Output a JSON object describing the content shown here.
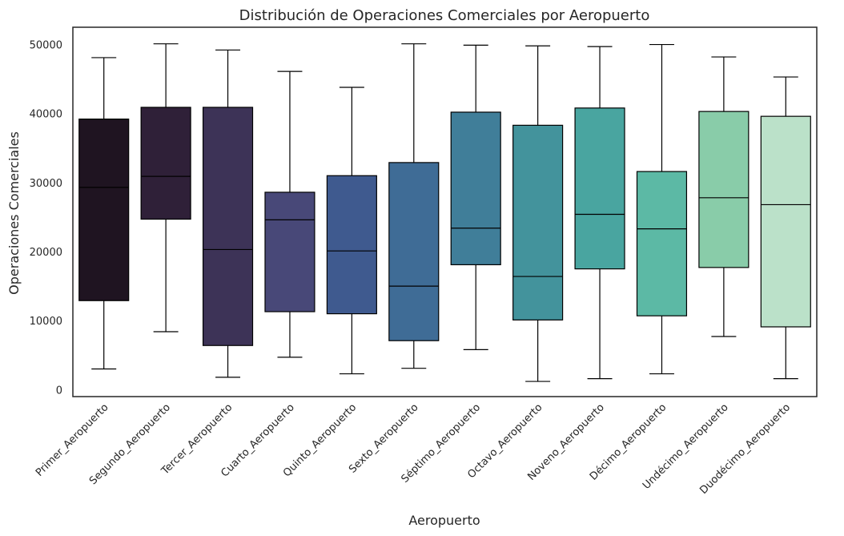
{
  "chart_data": {
    "type": "box",
    "title": "Distribución de Operaciones Comerciales por Aeropuerto",
    "xlabel": "Aeropuerto",
    "ylabel": "Operaciones Comerciales",
    "ylim": [
      -1000,
      52500
    ],
    "yticks": [
      0,
      10000,
      20000,
      30000,
      40000,
      50000
    ],
    "grid": false,
    "legend": "none",
    "categories": [
      "Primer_Aeropuerto",
      "Segundo_Aeropuerto",
      "Tercer_Aeropuerto",
      "Cuarto_Aeropuerto",
      "Quinto_Aeropuerto",
      "Sexto_Aeropuerto",
      "Séptimo_Aeropuerto",
      "Octavo_Aeropuerto",
      "Noveno_Aeropuerto",
      "Décimo_Aeropuerto",
      "Undécimo_Aeropuerto",
      "Duodécimo_Aeropuerto"
    ],
    "boxes": [
      {
        "min": 3000,
        "q1": 12900,
        "median": 29300,
        "q3": 39200,
        "max": 48100,
        "color": "#1f1421"
      },
      {
        "min": 8400,
        "q1": 24700,
        "median": 30900,
        "q3": 40900,
        "max": 50100,
        "color": "#2f2038"
      },
      {
        "min": 1800,
        "q1": 6400,
        "median": 20300,
        "q3": 40900,
        "max": 49200,
        "color": "#3d3357"
      },
      {
        "min": 4700,
        "q1": 11300,
        "median": 24600,
        "q3": 28600,
        "max": 46100,
        "color": "#484878"
      },
      {
        "min": 2300,
        "q1": 11000,
        "median": 20100,
        "q3": 31000,
        "max": 43800,
        "color": "#3f5a8f"
      },
      {
        "min": 3100,
        "q1": 7100,
        "median": 15000,
        "q3": 32900,
        "max": 50100,
        "color": "#3f6c96"
      },
      {
        "min": 5800,
        "q1": 18100,
        "median": 23400,
        "q3": 40200,
        "max": 49900,
        "color": "#407e99"
      },
      {
        "min": 1200,
        "q1": 10100,
        "median": 16400,
        "q3": 38300,
        "max": 49800,
        "color": "#43939c"
      },
      {
        "min": 1600,
        "q1": 17500,
        "median": 25400,
        "q3": 40800,
        "max": 49700,
        "color": "#49a5a0"
      },
      {
        "min": 2300,
        "q1": 10700,
        "median": 23300,
        "q3": 31600,
        "max": 50000,
        "color": "#5cb9a5"
      },
      {
        "min": 7700,
        "q1": 17700,
        "median": 27800,
        "q3": 40300,
        "max": 48200,
        "color": "#89cca9"
      },
      {
        "min": 1600,
        "q1": 9100,
        "median": 26800,
        "q3": 39600,
        "max": 45300,
        "color": "#bbe1c9"
      }
    ]
  }
}
